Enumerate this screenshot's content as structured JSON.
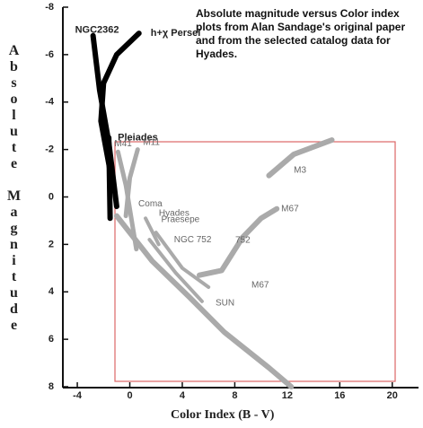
{
  "chart_data": {
    "type": "line",
    "title": "Absolute magnitude versus Color index plots from Alan Sandage's original paper and from the selected catalog data for Hyades.",
    "x_label": "Color Index (B - V)",
    "y_label": "Absolute Magnitude",
    "xlim": [
      -5.1,
      22
    ],
    "ylim": [
      -8,
      8
    ],
    "y_inverted": true,
    "xticks": [
      -4,
      0,
      4,
      8,
      12,
      16,
      20
    ],
    "yticks": [
      -8,
      -6,
      -4,
      -2,
      0,
      2,
      4,
      6,
      8
    ],
    "series": [
      {
        "name": "NGC2362",
        "color": "#000000",
        "line_width": 6,
        "x": [
          -2.8,
          -2.3,
          -1.6,
          -1.0
        ],
        "y": [
          -6.8,
          -4.5,
          -2.3,
          0.4
        ]
      },
      {
        "name": "h+χ Persei",
        "color": "#000000",
        "line_width": 6,
        "x": [
          0.7,
          -1.0,
          -2.0,
          -2.2,
          -1.4
        ],
        "y": [
          -6.9,
          -6.0,
          -4.8,
          -3.2,
          -0.8
        ]
      },
      {
        "name": "Pleiades",
        "color": "#000000",
        "line_width": 6,
        "x": [
          -1.6,
          -1.5
        ],
        "y": [
          -2.5,
          0.9
        ]
      },
      {
        "name": "M41",
        "color": "#aaaaaa",
        "line_width": 5,
        "x": [
          -0.9,
          -0.3,
          0.5
        ],
        "y": [
          -1.9,
          -0.5,
          2.2
        ]
      },
      {
        "name": "M11",
        "color": "#aaaaaa",
        "line_width": 5,
        "x": [
          0.6,
          0.0,
          -0.3
        ],
        "y": [
          -2.0,
          -0.8,
          0.8
        ]
      },
      {
        "name": "Coma",
        "color": "#aaaaaa",
        "line_width": 4,
        "x": [
          1.2,
          2.2
        ],
        "y": [
          0.9,
          2.0
        ]
      },
      {
        "name": "Hyades",
        "color": "#aaaaaa",
        "line_width": 6,
        "x": [
          -1.0,
          1.7,
          4.5,
          7.2,
          10.6,
          12.3
        ],
        "y": [
          0.8,
          2.7,
          4.2,
          5.7,
          7.2,
          8.0
        ]
      },
      {
        "name": "Praesepe",
        "color": "#aaaaaa",
        "line_width": 4,
        "x": [
          1.5,
          3.5,
          5.5
        ],
        "y": [
          1.8,
          3.2,
          4.4
        ]
      },
      {
        "name": "NGC 752",
        "color": "#aaaaaa",
        "line_width": 4,
        "x": [
          2.0,
          4.0,
          6.0
        ],
        "y": [
          1.5,
          3.0,
          3.8
        ]
      },
      {
        "name": "M67",
        "color": "#aaaaaa",
        "line_width": 6,
        "x": [
          5.3,
          7.0,
          8.6,
          10.0,
          11.2
        ],
        "y": [
          3.3,
          3.1,
          1.7,
          0.9,
          0.5
        ]
      },
      {
        "name": "M3",
        "color": "#aaaaaa",
        "line_width": 6,
        "x": [
          10.6,
          12.5,
          15.4
        ],
        "y": [
          -0.9,
          -1.8,
          -2.4
        ]
      }
    ],
    "annotations": [
      "752",
      "M67",
      "SUN"
    ]
  }
}
